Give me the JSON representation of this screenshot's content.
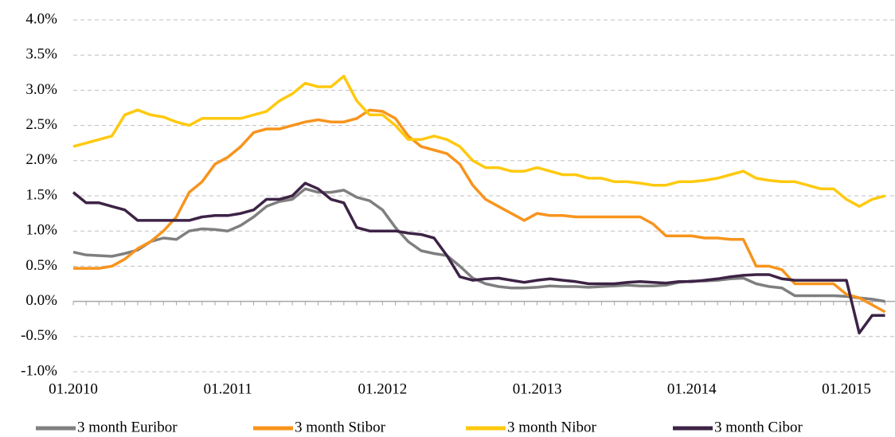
{
  "chart_data": {
    "type": "line",
    "categories": [
      "01.2010",
      null,
      null,
      null,
      null,
      null,
      null,
      null,
      null,
      null,
      null,
      null,
      "01.2011",
      null,
      null,
      null,
      null,
      null,
      null,
      null,
      null,
      null,
      null,
      null,
      "01.2012",
      null,
      null,
      null,
      null,
      null,
      null,
      null,
      null,
      null,
      null,
      null,
      "01.2013",
      null,
      null,
      null,
      null,
      null,
      null,
      null,
      null,
      null,
      null,
      null,
      "01.2014",
      null,
      null,
      null,
      null,
      null,
      null,
      null,
      null,
      null,
      null,
      null,
      "01.2015",
      null,
      null,
      null
    ],
    "series": [
      {
        "name": "3 month Euribor",
        "color": "#7f7f7f",
        "values": [
          0.7,
          0.66,
          0.65,
          0.64,
          0.68,
          0.73,
          0.85,
          0.9,
          0.88,
          1.0,
          1.03,
          1.02,
          1.0,
          1.08,
          1.2,
          1.35,
          1.42,
          1.45,
          1.6,
          1.55,
          1.55,
          1.58,
          1.48,
          1.43,
          1.3,
          1.05,
          0.85,
          0.72,
          0.68,
          0.65,
          0.5,
          0.33,
          0.25,
          0.21,
          0.19,
          0.19,
          0.2,
          0.22,
          0.21,
          0.21,
          0.2,
          0.21,
          0.22,
          0.23,
          0.22,
          0.22,
          0.23,
          0.27,
          0.29,
          0.29,
          0.3,
          0.32,
          0.33,
          0.25,
          0.21,
          0.19,
          0.08,
          0.08,
          0.08,
          0.08,
          0.07,
          0.05,
          0.03,
          0.0
        ]
      },
      {
        "name": "3 month Stibor",
        "color": "#f7941d",
        "values": [
          0.47,
          0.47,
          0.47,
          0.5,
          0.6,
          0.75,
          0.85,
          1.0,
          1.2,
          1.55,
          1.7,
          1.95,
          2.05,
          2.2,
          2.4,
          2.45,
          2.45,
          2.5,
          2.55,
          2.58,
          2.55,
          2.55,
          2.6,
          2.72,
          2.7,
          2.6,
          2.35,
          2.2,
          2.15,
          2.1,
          1.95,
          1.65,
          1.45,
          1.35,
          1.25,
          1.15,
          1.25,
          1.22,
          1.22,
          1.2,
          1.2,
          1.2,
          1.2,
          1.2,
          1.2,
          1.1,
          0.93,
          0.93,
          0.93,
          0.9,
          0.9,
          0.88,
          0.88,
          0.5,
          0.5,
          0.45,
          0.25,
          0.25,
          0.25,
          0.25,
          0.1,
          0.05,
          -0.05,
          -0.15
        ]
      },
      {
        "name": "3 month Nibor",
        "color": "#ffc90e",
        "values": [
          2.2,
          2.25,
          2.3,
          2.35,
          2.65,
          2.72,
          2.65,
          2.62,
          2.55,
          2.5,
          2.6,
          2.6,
          2.6,
          2.6,
          2.65,
          2.7,
          2.85,
          2.95,
          3.1,
          3.05,
          3.05,
          3.2,
          2.85,
          2.65,
          2.65,
          2.5,
          2.3,
          2.3,
          2.35,
          2.3,
          2.2,
          2.0,
          1.9,
          1.9,
          1.85,
          1.85,
          1.9,
          1.85,
          1.8,
          1.8,
          1.75,
          1.75,
          1.7,
          1.7,
          1.68,
          1.65,
          1.65,
          1.7,
          1.7,
          1.72,
          1.75,
          1.8,
          1.85,
          1.75,
          1.72,
          1.7,
          1.7,
          1.65,
          1.6,
          1.6,
          1.45,
          1.35,
          1.45,
          1.5
        ]
      },
      {
        "name": "3 month Cibor",
        "color": "#3d2346",
        "values": [
          1.55,
          1.4,
          1.4,
          1.35,
          1.3,
          1.15,
          1.15,
          1.15,
          1.15,
          1.15,
          1.2,
          1.22,
          1.22,
          1.25,
          1.3,
          1.45,
          1.45,
          1.5,
          1.68,
          1.6,
          1.45,
          1.4,
          1.05,
          1.0,
          1.0,
          1.0,
          0.97,
          0.95,
          0.9,
          0.65,
          0.35,
          0.3,
          0.32,
          0.33,
          0.3,
          0.27,
          0.3,
          0.32,
          0.3,
          0.28,
          0.25,
          0.25,
          0.25,
          0.27,
          0.28,
          0.27,
          0.26,
          0.28,
          0.28,
          0.3,
          0.32,
          0.35,
          0.37,
          0.38,
          0.38,
          0.32,
          0.3,
          0.3,
          0.3,
          0.3,
          0.3,
          -0.45,
          -0.2,
          -0.2
        ]
      }
    ],
    "ylim": [
      -1,
      4
    ],
    "yticks": [
      {
        "value": -1,
        "label": "-1.0%"
      },
      {
        "value": -0.5,
        "label": "-0.5%"
      },
      {
        "value": 0,
        "label": "0.0%"
      },
      {
        "value": 0.5,
        "label": "0.5%"
      },
      {
        "value": 1,
        "label": "1.0%"
      },
      {
        "value": 1.5,
        "label": "1.5%"
      },
      {
        "value": 2,
        "label": "2.0%"
      },
      {
        "value": 2.5,
        "label": "2.5%"
      },
      {
        "value": 3,
        "label": "3.0%"
      },
      {
        "value": 3.5,
        "label": "3.5%"
      },
      {
        "value": 4,
        "label": "4.0%"
      }
    ],
    "grid": true,
    "legend": "bottom"
  }
}
